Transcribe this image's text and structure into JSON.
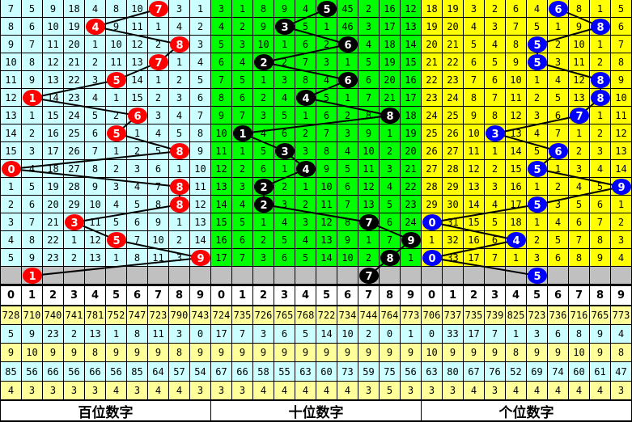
{
  "colors": {
    "hundreds_bg": "#ccffff",
    "tens_bg": "#00ff00",
    "units_bg": "#ffff00",
    "hundreds_ball": "#ff0000",
    "tens_ball": "#000000",
    "units_ball": "#0000ff",
    "pending_row": "#c0c0c0",
    "stat_yellow": "#ffff99",
    "stat_cyan": "#ccffff"
  },
  "chart_data": {
    "type": "table",
    "header_digits": [
      "0",
      "1",
      "2",
      "3",
      "4",
      "5",
      "6",
      "7",
      "8",
      "9"
    ],
    "panels": [
      {
        "label": "百位数字",
        "draws": [
          7,
          4,
          8,
          7,
          5,
          1,
          6,
          5,
          8,
          0,
          8,
          8,
          3,
          5,
          9
        ],
        "pending_ball": 1,
        "rows": [
          [
            7,
            5,
            9,
            18,
            4,
            8,
            10,
            7,
            3,
            1
          ],
          [
            8,
            6,
            10,
            19,
            4,
            9,
            11,
            1,
            4,
            2
          ],
          [
            9,
            7,
            11,
            20,
            1,
            10,
            12,
            2,
            8,
            3
          ],
          [
            10,
            8,
            12,
            21,
            2,
            11,
            13,
            7,
            1,
            4
          ],
          [
            11,
            9,
            13,
            22,
            3,
            5,
            14,
            1,
            2,
            5
          ],
          [
            12,
            1,
            14,
            23,
            4,
            1,
            15,
            2,
            3,
            6
          ],
          [
            13,
            1,
            15,
            24,
            5,
            2,
            6,
            3,
            4,
            7
          ],
          [
            14,
            2,
            16,
            25,
            6,
            5,
            1,
            4,
            5,
            8
          ],
          [
            15,
            3,
            17,
            26,
            7,
            1,
            2,
            5,
            8,
            9
          ],
          [
            0,
            4,
            18,
            27,
            8,
            2,
            3,
            6,
            1,
            10
          ],
          [
            1,
            5,
            19,
            28,
            9,
            3,
            4,
            7,
            8,
            11
          ],
          [
            2,
            6,
            20,
            29,
            10,
            4,
            5,
            8,
            8,
            12
          ],
          [
            3,
            7,
            21,
            3,
            11,
            5,
            6,
            9,
            1,
            13
          ],
          [
            4,
            8,
            22,
            1,
            12,
            5,
            7,
            10,
            2,
            14
          ],
          [
            5,
            9,
            23,
            2,
            13,
            1,
            8,
            11,
            3,
            9
          ]
        ],
        "stats": [
          [
            "728",
            "710",
            "740",
            "741",
            "781",
            "752",
            "747",
            "723",
            "790",
            "743"
          ],
          [
            "5",
            "9",
            "23",
            "2",
            "13",
            "1",
            "8",
            "11",
            "3",
            "0"
          ],
          [
            "9",
            "10",
            "9",
            "9",
            "8",
            "9",
            "9",
            "9",
            "8",
            "9"
          ],
          [
            "85",
            "56",
            "66",
            "56",
            "66",
            "56",
            "85",
            "64",
            "57",
            "54"
          ],
          [
            "4",
            "3",
            "3",
            "3",
            "3",
            "4",
            "3",
            "4",
            "4",
            "3"
          ]
        ]
      },
      {
        "label": "十位数字",
        "draws": [
          5,
          3,
          6,
          2,
          6,
          4,
          8,
          1,
          3,
          4,
          2,
          2,
          7,
          9,
          8
        ],
        "pending_ball": 7,
        "rows": [
          [
            3,
            1,
            8,
            9,
            4,
            5,
            45,
            2,
            16,
            12
          ],
          [
            4,
            2,
            9,
            3,
            5,
            1,
            46,
            3,
            17,
            13
          ],
          [
            5,
            3,
            10,
            1,
            6,
            2,
            6,
            4,
            18,
            14
          ],
          [
            6,
            4,
            2,
            2,
            7,
            3,
            1,
            5,
            19,
            15
          ],
          [
            7,
            5,
            1,
            3,
            8,
            4,
            6,
            6,
            20,
            16
          ],
          [
            8,
            6,
            2,
            4,
            4,
            5,
            1,
            7,
            21,
            17
          ],
          [
            9,
            7,
            3,
            5,
            1,
            6,
            2,
            8,
            8,
            18
          ],
          [
            10,
            1,
            4,
            6,
            2,
            7,
            3,
            9,
            1,
            19
          ],
          [
            11,
            1,
            5,
            3,
            3,
            8,
            4,
            10,
            2,
            20
          ],
          [
            12,
            2,
            6,
            1,
            4,
            9,
            5,
            11,
            3,
            21
          ],
          [
            13,
            3,
            2,
            2,
            1,
            10,
            6,
            12,
            4,
            22
          ],
          [
            14,
            4,
            2,
            3,
            2,
            11,
            7,
            13,
            5,
            23
          ],
          [
            15,
            5,
            1,
            4,
            3,
            12,
            8,
            7,
            6,
            24
          ],
          [
            16,
            6,
            2,
            5,
            4,
            13,
            9,
            1,
            7,
            9
          ],
          [
            17,
            7,
            3,
            6,
            5,
            14,
            10,
            2,
            8,
            1
          ]
        ],
        "stats": [
          [
            "724",
            "735",
            "726",
            "765",
            "768",
            "722",
            "734",
            "744",
            "764",
            "773"
          ],
          [
            "17",
            "7",
            "3",
            "6",
            "5",
            "14",
            "10",
            "2",
            "0",
            "1"
          ],
          [
            "9",
            "9",
            "9",
            "9",
            "9",
            "9",
            "9",
            "9",
            "9",
            "9"
          ],
          [
            "67",
            "66",
            "58",
            "55",
            "63",
            "60",
            "73",
            "59",
            "75",
            "56"
          ],
          [
            "3",
            "3",
            "4",
            "4",
            "4",
            "4",
            "4",
            "3",
            "5",
            "3"
          ]
        ]
      },
      {
        "label": "个位数字",
        "draws": [
          6,
          8,
          5,
          5,
          8,
          8,
          7,
          3,
          6,
          5,
          9,
          5,
          0,
          4,
          0
        ],
        "pending_ball": 5,
        "rows": [
          [
            18,
            19,
            3,
            2,
            6,
            4,
            6,
            8,
            1,
            5
          ],
          [
            19,
            20,
            4,
            3,
            7,
            5,
            1,
            9,
            8,
            6
          ],
          [
            20,
            21,
            5,
            4,
            8,
            5,
            2,
            10,
            1,
            7
          ],
          [
            21,
            22,
            6,
            5,
            9,
            5,
            3,
            11,
            2,
            8
          ],
          [
            22,
            23,
            7,
            6,
            10,
            1,
            4,
            12,
            8,
            9
          ],
          [
            23,
            24,
            8,
            7,
            11,
            2,
            5,
            13,
            8,
            10
          ],
          [
            24,
            25,
            9,
            8,
            12,
            3,
            6,
            7,
            1,
            11
          ],
          [
            25,
            26,
            10,
            3,
            13,
            4,
            7,
            1,
            2,
            12
          ],
          [
            26,
            27,
            11,
            1,
            14,
            5,
            6,
            2,
            3,
            13
          ],
          [
            27,
            28,
            12,
            2,
            15,
            5,
            1,
            3,
            4,
            14
          ],
          [
            28,
            29,
            13,
            3,
            16,
            1,
            2,
            4,
            5,
            9
          ],
          [
            29,
            30,
            14,
            4,
            17,
            5,
            3,
            5,
            6,
            1
          ],
          [
            0,
            31,
            15,
            5,
            18,
            1,
            4,
            6,
            7,
            2
          ],
          [
            1,
            32,
            16,
            6,
            4,
            2,
            5,
            7,
            8,
            3
          ],
          [
            0,
            33,
            17,
            7,
            1,
            3,
            6,
            8,
            9,
            4
          ]
        ],
        "stats": [
          [
            "706",
            "737",
            "735",
            "739",
            "825",
            "723",
            "736",
            "716",
            "765",
            "773"
          ],
          [
            "0",
            "33",
            "17",
            "7",
            "1",
            "3",
            "6",
            "8",
            "9",
            "4"
          ],
          [
            "10",
            "9",
            "9",
            "9",
            "8",
            "9",
            "9",
            "10",
            "9",
            "8"
          ],
          [
            "63",
            "80",
            "67",
            "76",
            "52",
            "69",
            "74",
            "60",
            "61",
            "47"
          ],
          [
            "3",
            "3",
            "4",
            "3",
            "4",
            "4",
            "4",
            "4",
            "4",
            "3"
          ]
        ]
      }
    ]
  }
}
